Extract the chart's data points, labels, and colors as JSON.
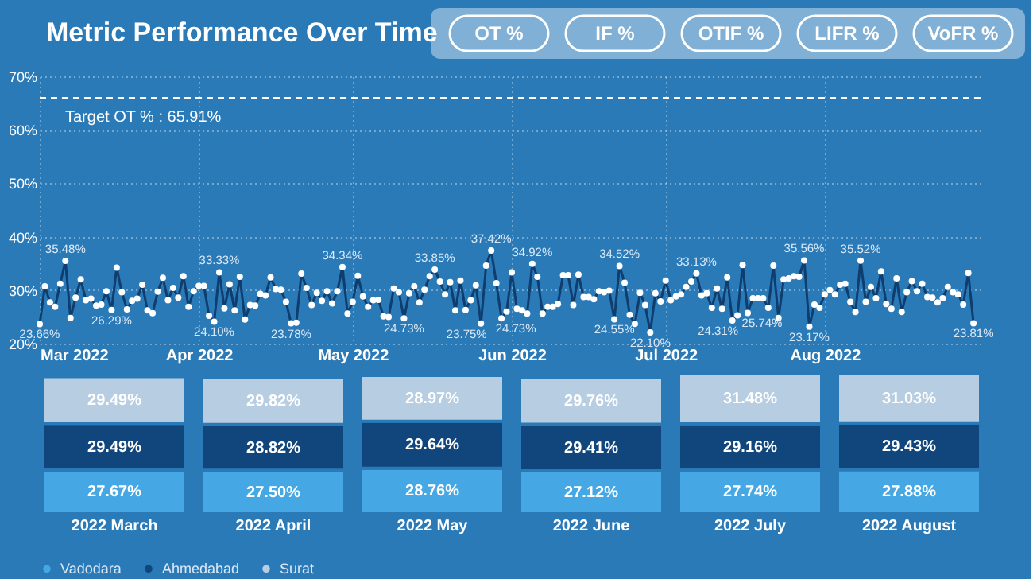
{
  "chart_data": [
    {
      "type": "line",
      "title": "Metric Performance Over Time",
      "annotations": [
        "OT %",
        "IF %",
        "OTIF %",
        "LIFR %",
        "VoFR %"
      ],
      "x": [
        "2022-03-01",
        "2022-03-02",
        "2022-03-03",
        "2022-03-04",
        "2022-03-05",
        "2022-03-06",
        "2022-03-07",
        "2022-03-08",
        "2022-03-09",
        "2022-03-10",
        "2022-03-11",
        "2022-03-12",
        "2022-03-13",
        "2022-03-14",
        "2022-03-15",
        "2022-03-16",
        "2022-03-17",
        "2022-03-18",
        "2022-03-19",
        "2022-03-20",
        "2022-03-21",
        "2022-03-22",
        "2022-03-23",
        "2022-03-24",
        "2022-03-25",
        "2022-03-26",
        "2022-03-27",
        "2022-03-28",
        "2022-03-29",
        "2022-03-30",
        "2022-03-31",
        "2022-04-01",
        "2022-04-02",
        "2022-04-03",
        "2022-04-04",
        "2022-04-05",
        "2022-04-06",
        "2022-04-07",
        "2022-04-08",
        "2022-04-09",
        "2022-04-10",
        "2022-04-11",
        "2022-04-12",
        "2022-04-13",
        "2022-04-14",
        "2022-04-15",
        "2022-04-16",
        "2022-04-17",
        "2022-04-18",
        "2022-04-19",
        "2022-04-20",
        "2022-04-21",
        "2022-04-22",
        "2022-04-23",
        "2022-04-24",
        "2022-04-25",
        "2022-04-26",
        "2022-04-27",
        "2022-04-28",
        "2022-04-29",
        "2022-04-30",
        "2022-05-01",
        "2022-05-02",
        "2022-05-03",
        "2022-05-04",
        "2022-05-05",
        "2022-05-06",
        "2022-05-07",
        "2022-05-08",
        "2022-05-09",
        "2022-05-10",
        "2022-05-11",
        "2022-05-12",
        "2022-05-13",
        "2022-05-14",
        "2022-05-15",
        "2022-05-16",
        "2022-05-17",
        "2022-05-18",
        "2022-05-19",
        "2022-05-20",
        "2022-05-21",
        "2022-05-22",
        "2022-05-23",
        "2022-05-24",
        "2022-05-25",
        "2022-05-26",
        "2022-05-27",
        "2022-05-28",
        "2022-05-29",
        "2022-05-30",
        "2022-05-31",
        "2022-06-01",
        "2022-06-02",
        "2022-06-03",
        "2022-06-04",
        "2022-06-05",
        "2022-06-06",
        "2022-06-07",
        "2022-06-08",
        "2022-06-09",
        "2022-06-10",
        "2022-06-11",
        "2022-06-12",
        "2022-06-13",
        "2022-06-14",
        "2022-06-15",
        "2022-06-16",
        "2022-06-17",
        "2022-06-18",
        "2022-06-19",
        "2022-06-20",
        "2022-06-21",
        "2022-06-22",
        "2022-06-23",
        "2022-06-24",
        "2022-06-25",
        "2022-06-26",
        "2022-06-27",
        "2022-06-28",
        "2022-06-29",
        "2022-06-30",
        "2022-07-01",
        "2022-07-02",
        "2022-07-03",
        "2022-07-04",
        "2022-07-05",
        "2022-07-06",
        "2022-07-07",
        "2022-07-08",
        "2022-07-09",
        "2022-07-10",
        "2022-07-11",
        "2022-07-12",
        "2022-07-13",
        "2022-07-14",
        "2022-07-15",
        "2022-07-16",
        "2022-07-17",
        "2022-07-18",
        "2022-07-19",
        "2022-07-20",
        "2022-07-21",
        "2022-07-22",
        "2022-07-23",
        "2022-07-24",
        "2022-07-25",
        "2022-07-26",
        "2022-07-27",
        "2022-07-28",
        "2022-07-29",
        "2022-07-30",
        "2022-07-31",
        "2022-08-01",
        "2022-08-02",
        "2022-08-03",
        "2022-08-04",
        "2022-08-05",
        "2022-08-06",
        "2022-08-07",
        "2022-08-08",
        "2022-08-09",
        "2022-08-10",
        "2022-08-11",
        "2022-08-12",
        "2022-08-13",
        "2022-08-14",
        "2022-08-15",
        "2022-08-16",
        "2022-08-17",
        "2022-08-18",
        "2022-08-19",
        "2022-08-20",
        "2022-08-21",
        "2022-08-22",
        "2022-08-23",
        "2022-08-24",
        "2022-08-25",
        "2022-08-26",
        "2022-08-27",
        "2022-08-28",
        "2022-08-29",
        "2022-08-30"
      ],
      "series": [
        {
          "color": "#0f3d6e",
          "values": [
            23.66,
            30.7,
            27.7,
            26.9,
            31.2,
            35.48,
            24.8,
            28.6,
            32.0,
            28.1,
            28.4,
            27.1,
            27.3,
            29.8,
            26.29,
            34.2,
            29.6,
            26.4,
            28.0,
            28.4,
            31.0,
            26.2,
            25.7,
            29.7,
            32.3,
            28.1,
            30.4,
            28.6,
            32.6,
            26.9,
            29.8,
            30.8,
            30.8,
            25.2,
            24.1,
            33.33,
            26.6,
            31.1,
            26.2,
            32.5,
            24.5,
            27.2,
            27.1,
            29.3,
            29.0,
            32.4,
            30.2,
            30.1,
            27.8,
            23.78,
            23.9,
            33.1,
            30.4,
            27.2,
            29.5,
            28.0,
            29.8,
            27.5,
            29.8,
            34.34,
            25.6,
            27.8,
            32.7,
            28.8,
            26.9,
            28.1,
            28.2,
            25.1,
            25.0,
            30.3,
            29.6,
            24.73,
            29.4,
            30.7,
            27.7,
            30.1,
            32.6,
            33.85,
            31.6,
            29.2,
            31.5,
            26.2,
            31.8,
            26.3,
            28.1,
            30.9,
            23.75,
            34.6,
            37.42,
            31.3,
            24.73,
            26.0,
            33.3,
            26.5,
            26.2,
            25.6,
            34.92,
            32.5,
            25.6,
            26.9,
            26.9,
            27.4,
            32.8,
            32.8,
            27.2,
            32.9,
            28.7,
            28.7,
            28.3,
            29.8,
            29.6,
            29.9,
            24.55,
            34.52,
            31.4,
            25.4,
            23.7,
            29.5,
            27.2,
            22.1,
            29.4,
            27.9,
            31.8,
            28.1,
            28.8,
            29.2,
            30.6,
            31.6,
            33.13,
            29.0,
            29.4,
            26.7,
            30.3,
            26.5,
            32.4,
            24.31,
            25.3,
            34.7,
            25.74,
            28.5,
            28.5,
            28.5,
            26.7,
            34.6,
            24.8,
            32.0,
            32.2,
            32.6,
            32.5,
            35.56,
            23.17,
            27.3,
            26.7,
            29.2,
            30.0,
            29.2,
            31.0,
            31.2,
            27.8,
            25.9,
            35.52,
            27.8,
            30.6,
            28.5,
            33.5,
            27.4,
            26.5,
            32.2,
            25.9,
            29.6,
            31.7,
            29.8,
            31.2,
            28.7,
            28.6,
            27.7,
            28.5,
            30.6,
            29.6,
            29.2,
            27.3,
            33.2,
            23.81
          ],
          "value_labels": [
            "23.66%",
            null,
            null,
            null,
            null,
            "35.48%",
            null,
            null,
            null,
            null,
            null,
            null,
            null,
            null,
            "26.29%",
            null,
            null,
            null,
            null,
            null,
            null,
            null,
            null,
            null,
            null,
            null,
            null,
            null,
            null,
            null,
            null,
            null,
            null,
            null,
            "24.10%",
            "33.33%",
            null,
            null,
            null,
            null,
            null,
            null,
            null,
            null,
            null,
            null,
            null,
            null,
            null,
            "23.78%",
            null,
            null,
            null,
            null,
            null,
            null,
            null,
            null,
            null,
            "34.34%",
            null,
            null,
            null,
            null,
            null,
            null,
            null,
            null,
            null,
            null,
            null,
            "24.73%",
            null,
            null,
            null,
            null,
            null,
            "33.85%",
            null,
            null,
            null,
            null,
            null,
            null,
            null,
            null,
            "23.75%",
            null,
            "37.42%",
            null,
            "24.73%",
            null,
            null,
            null,
            null,
            null,
            "34.92%",
            null,
            null,
            null,
            null,
            null,
            null,
            null,
            null,
            null,
            null,
            null,
            null,
            null,
            null,
            null,
            "24.55%",
            "34.52%",
            null,
            null,
            null,
            null,
            null,
            "22.10%",
            null,
            null,
            null,
            null,
            null,
            null,
            null,
            null,
            "33.13%",
            null,
            null,
            null,
            null,
            null,
            null,
            "24.31%",
            null,
            null,
            "25.74%",
            null,
            null,
            null,
            null,
            null,
            null,
            null,
            null,
            null,
            null,
            "35.56%",
            "23.17%",
            null,
            null,
            null,
            null,
            null,
            null,
            null,
            null,
            null,
            "35.52%",
            null,
            null,
            null,
            null,
            null,
            null,
            null,
            null,
            null,
            null,
            null,
            null,
            null,
            null,
            null,
            null,
            null,
            null,
            null,
            null,
            null,
            "23.81%"
          ]
        }
      ],
      "xlim": [
        "2022-03-01",
        "2022-09-01"
      ],
      "xticks": [
        {
          "value": "2022-03-01",
          "label": "Mar 2022"
        },
        {
          "value": "2022-04-01",
          "label": "Apr 2022"
        },
        {
          "value": "2022-05-01",
          "label": "May 2022"
        },
        {
          "value": "2022-06-01",
          "label": "Jun 2022"
        },
        {
          "value": "2022-07-01",
          "label": "Jul 2022"
        },
        {
          "value": "2022-08-01",
          "label": "Aug 2022"
        }
      ],
      "ylim": [
        20,
        70
      ],
      "yticks": [
        {
          "value": 20,
          "label": "20%"
        },
        {
          "value": 30,
          "label": "30%"
        },
        {
          "value": 40,
          "label": "40%"
        },
        {
          "value": 50,
          "label": "50%"
        },
        {
          "value": 60,
          "label": "60%"
        },
        {
          "value": 70,
          "label": "70%"
        }
      ],
      "ref_lines": [
        {
          "axis": "y",
          "value": 65.91,
          "label": "Target OT % : 65.91%",
          "color": "#ffffff",
          "line_style": "dashed"
        }
      ],
      "grid": true,
      "marker": "circle",
      "line_style": "solid"
    },
    {
      "type": "bar",
      "stacked": true,
      "legend": "bottom",
      "tick_labels": "x",
      "categories": [
        "2022 March",
        "2022 April",
        "2022 May",
        "2022 June",
        "2022 July",
        "2022 August"
      ],
      "series": [
        {
          "name": "Vadodara",
          "color": "#45a8e4",
          "values": [
            27.67,
            27.5,
            28.76,
            27.12,
            27.74,
            27.88
          ],
          "value_labels": [
            "27.67%",
            "27.50%",
            "28.76%",
            "27.12%",
            "27.74%",
            "27.88%"
          ]
        },
        {
          "name": "Ahmedabad",
          "color": "#11467c",
          "values": [
            29.49,
            28.82,
            29.64,
            29.41,
            29.16,
            29.43
          ],
          "value_labels": [
            "29.49%",
            "28.82%",
            "29.64%",
            "29.41%",
            "29.16%",
            "29.43%"
          ]
        },
        {
          "name": "Surat",
          "color": "#b6cde2",
          "values": [
            29.49,
            29.82,
            28.97,
            29.76,
            31.48,
            31.03
          ],
          "value_labels": [
            "29.49%",
            "29.82%",
            "28.97%",
            "29.76%",
            "31.48%",
            "31.03%"
          ]
        }
      ]
    }
  ]
}
